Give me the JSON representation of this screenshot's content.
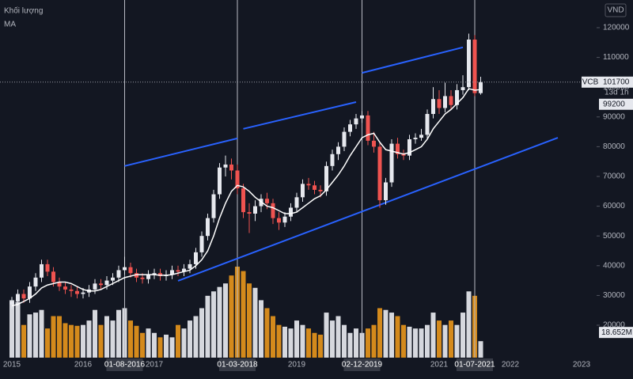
{
  "chart_data": {
    "type": "candlestick",
    "symbol": "VCB",
    "currency": "VND",
    "countdown": "13d 1h",
    "x": [
      "2015-01",
      "2015-02",
      "2015-03",
      "2015-04",
      "2015-05",
      "2015-06",
      "2015-07",
      "2015-08",
      "2015-09",
      "2015-10",
      "2015-11",
      "2015-12",
      "2016-01",
      "2016-02",
      "2016-03",
      "2016-04",
      "2016-05",
      "2016-06",
      "2016-07",
      "2016-08",
      "2016-09",
      "2016-10",
      "2016-11",
      "2016-12",
      "2017-01",
      "2017-02",
      "2017-03",
      "2017-04",
      "2017-05",
      "2017-06",
      "2017-07",
      "2017-08",
      "2017-09",
      "2017-10",
      "2017-11",
      "2017-12",
      "2018-01",
      "2018-02",
      "2018-03",
      "2018-04",
      "2018-05",
      "2018-06",
      "2018-07",
      "2018-08",
      "2018-09",
      "2018-10",
      "2018-11",
      "2018-12",
      "2019-01",
      "2019-02",
      "2019-03",
      "2019-04",
      "2019-05",
      "2019-06",
      "2019-07",
      "2019-08",
      "2019-09",
      "2019-10",
      "2019-11",
      "2019-12",
      "2020-01",
      "2020-02",
      "2020-03",
      "2020-04",
      "2020-05",
      "2020-06",
      "2020-07",
      "2020-08",
      "2020-09",
      "2020-10",
      "2020-11",
      "2020-12",
      "2021-01",
      "2021-02",
      "2021-03",
      "2021-04",
      "2021-05",
      "2021-06",
      "2021-07",
      "2021-08"
    ],
    "open": [
      27000,
      28000,
      30500,
      29000,
      33000,
      36000,
      40500,
      38000,
      34500,
      33000,
      32000,
      31500,
      30500,
      31000,
      32000,
      34000,
      33500,
      35000,
      36000,
      38500,
      39500,
      37500,
      36000,
      35500,
      37000,
      37500,
      36500,
      37000,
      38500,
      38000,
      39000,
      40500,
      44500,
      50000,
      56000,
      64000,
      73000,
      74000,
      72000,
      66000,
      58000,
      57500,
      60000,
      62500,
      61000,
      56000,
      54500,
      56500,
      59500,
      63000,
      67500,
      67000,
      65500,
      65000,
      73500,
      77500,
      80000,
      85000,
      87500,
      89500,
      90500,
      82000,
      80000,
      62000,
      68000,
      81000,
      77500,
      77000,
      82500,
      83000,
      84000,
      91000,
      96000,
      93000,
      97000,
      94000,
      99000,
      100000,
      116000,
      98000
    ],
    "high": [
      29500,
      32000,
      32000,
      34500,
      37500,
      42000,
      42000,
      39500,
      36000,
      34500,
      33500,
      33000,
      32500,
      33500,
      35500,
      35500,
      36500,
      37500,
      40000,
      43000,
      41000,
      39000,
      37500,
      38500,
      39000,
      39000,
      38500,
      40000,
      40000,
      40500,
      42000,
      46000,
      51500,
      57500,
      65500,
      74500,
      77000,
      76000,
      74000,
      67500,
      61000,
      62000,
      64000,
      64500,
      62500,
      58000,
      58000,
      61000,
      64500,
      69000,
      69500,
      68500,
      67000,
      75000,
      79000,
      81500,
      86500,
      89000,
      91000,
      92000,
      92000,
      85000,
      81500,
      69500,
      82500,
      83000,
      79000,
      84000,
      84500,
      86000,
      92500,
      100000,
      99000,
      101500,
      99000,
      101000,
      104000,
      118000,
      117500,
      103500
    ],
    "low": [
      25500,
      26500,
      27500,
      27500,
      31500,
      34500,
      36500,
      33000,
      31500,
      30500,
      29500,
      29000,
      29000,
      29500,
      30500,
      32000,
      32000,
      33500,
      34500,
      37000,
      36000,
      34500,
      34000,
      34000,
      35500,
      35000,
      35000,
      35500,
      36500,
      36500,
      37500,
      39000,
      43000,
      48500,
      54500,
      62500,
      70000,
      69000,
      64000,
      56000,
      51000,
      55000,
      58000,
      59000,
      54000,
      52000,
      53000,
      55000,
      58000,
      61500,
      65500,
      64000,
      63000,
      63500,
      72000,
      75500,
      78500,
      83500,
      86000,
      88000,
      80500,
      78000,
      59500,
      60500,
      66500,
      76000,
      75500,
      75500,
      81000,
      82000,
      82500,
      89500,
      91000,
      91500,
      92500,
      92500,
      97500,
      99000,
      97000,
      97500
    ],
    "close": [
      28000,
      30500,
      29000,
      33000,
      36000,
      40500,
      38000,
      34500,
      33000,
      32000,
      31500,
      30500,
      31000,
      32000,
      34000,
      33500,
      35000,
      36000,
      38500,
      39500,
      37500,
      36000,
      35500,
      37000,
      37500,
      36500,
      37000,
      38500,
      38000,
      39000,
      40500,
      44500,
      50000,
      56000,
      64000,
      73000,
      74000,
      72000,
      66000,
      58000,
      57500,
      60000,
      62500,
      61000,
      56000,
      54500,
      56500,
      59500,
      63000,
      67500,
      67000,
      65500,
      65000,
      73500,
      77500,
      80000,
      85000,
      87500,
      89500,
      90500,
      82000,
      80000,
      62000,
      68000,
      81000,
      77500,
      77000,
      82500,
      83000,
      84000,
      91000,
      96000,
      93000,
      97000,
      94000,
      99000,
      100000,
      116000,
      98000,
      101700
    ],
    "up_color": "#e6e8ee",
    "down_color": "#ef5350",
    "ma": {
      "name": "MA",
      "color": "#ffffff",
      "values": [
        26500,
        27000,
        28000,
        29000,
        30500,
        32500,
        33500,
        34000,
        34500,
        34500,
        34000,
        33000,
        32000,
        31500,
        31500,
        32000,
        33000,
        34000,
        35000,
        36000,
        36500,
        37000,
        37000,
        37000,
        37000,
        36800,
        36800,
        37000,
        37500,
        38000,
        38500,
        40000,
        42000,
        45000,
        50000,
        56000,
        61000,
        65000,
        67000,
        66500,
        65000,
        63000,
        61500,
        60000,
        59500,
        58500,
        57500,
        57500,
        58000,
        59500,
        61000,
        62500,
        63500,
        65500,
        68000,
        70500,
        73500,
        77000,
        80000,
        83000,
        84000,
        84500,
        81500,
        79000,
        78500,
        78000,
        77500,
        78000,
        79000,
        80000,
        82500,
        86000,
        88500,
        91000,
        92500,
        94500,
        96500,
        99500,
        99000,
        99200
      ]
    },
    "volume": {
      "name": "Khối lượng",
      "up_color": "#d6d8de",
      "down_color": "#d48a1c",
      "values": [
        65000000,
        63000000,
        37000000,
        49000000,
        51000000,
        54000000,
        33000000,
        47000000,
        47000000,
        39000000,
        37000000,
        36000000,
        37000000,
        42000000,
        54000000,
        37000000,
        47000000,
        42000000,
        54000000,
        56000000,
        42000000,
        36000000,
        28000000,
        33000000,
        28000000,
        23000000,
        26000000,
        23000000,
        37000000,
        33000000,
        42000000,
        47000000,
        56000000,
        70000000,
        75000000,
        80000000,
        84000000,
        93000000,
        103000000,
        98000000,
        84000000,
        79000000,
        65000000,
        56000000,
        47000000,
        37000000,
        35000000,
        33000000,
        42000000,
        37000000,
        33000000,
        28000000,
        26000000,
        51000000,
        42000000,
        47000000,
        37000000,
        28000000,
        33000000,
        28000000,
        33000000,
        37000000,
        56000000,
        54000000,
        51000000,
        47000000,
        37000000,
        35000000,
        33000000,
        33000000,
        37000000,
        51000000,
        42000000,
        37000000,
        42000000,
        37000000,
        51000000,
        75000000,
        70000000,
        18652000
      ],
      "value_labels": [
        null,
        null,
        null,
        null,
        null,
        null,
        null,
        null,
        null,
        null,
        null,
        null,
        null,
        null,
        null,
        null,
        null,
        null,
        null,
        null,
        null,
        null,
        null,
        null,
        null,
        null,
        null,
        null,
        null,
        null,
        null,
        null,
        null,
        null,
        null,
        null,
        null,
        null,
        null,
        null,
        null,
        null,
        null,
        null,
        null,
        null,
        null,
        null,
        null,
        null,
        null,
        null,
        null,
        null,
        null,
        null,
        null,
        null,
        null,
        null,
        null,
        null,
        null,
        null,
        null,
        null,
        null,
        null,
        null,
        null,
        null,
        null,
        null,
        null,
        null,
        null,
        null,
        null,
        null,
        "18.652M"
      ]
    },
    "ylim": [
      9100,
      129300
    ],
    "yticks": [
      20000,
      30000,
      40000,
      50000,
      60000,
      70000,
      80000,
      90000,
      100000,
      110000,
      120000
    ],
    "xlim": [
      "2014-11",
      "2023-03"
    ],
    "xticks": [
      "2015",
      "2016",
      "2017",
      "2019",
      "2021",
      "2022",
      "2023"
    ],
    "markers": [
      "01-08-2016",
      "01-03-2018",
      "02-12-2019",
      "01-07-2021"
    ],
    "trend_lines": [
      {
        "x": [
          "2016-08",
          "2018-03"
        ],
        "y": [
          73500,
          82800
        ],
        "color": "#2962ff"
      },
      {
        "x": [
          "2018-04",
          "2019-11"
        ],
        "y": [
          86000,
          95000
        ],
        "color": "#2962ff"
      },
      {
        "x": [
          "2019-12",
          "2021-05"
        ],
        "y": [
          104800,
          113400
        ],
        "color": "#2962ff"
      },
      {
        "x": [
          "2017-05",
          "2022-09"
        ],
        "y": [
          34900,
          83000
        ],
        "color": "#2962ff"
      }
    ]
  }
}
